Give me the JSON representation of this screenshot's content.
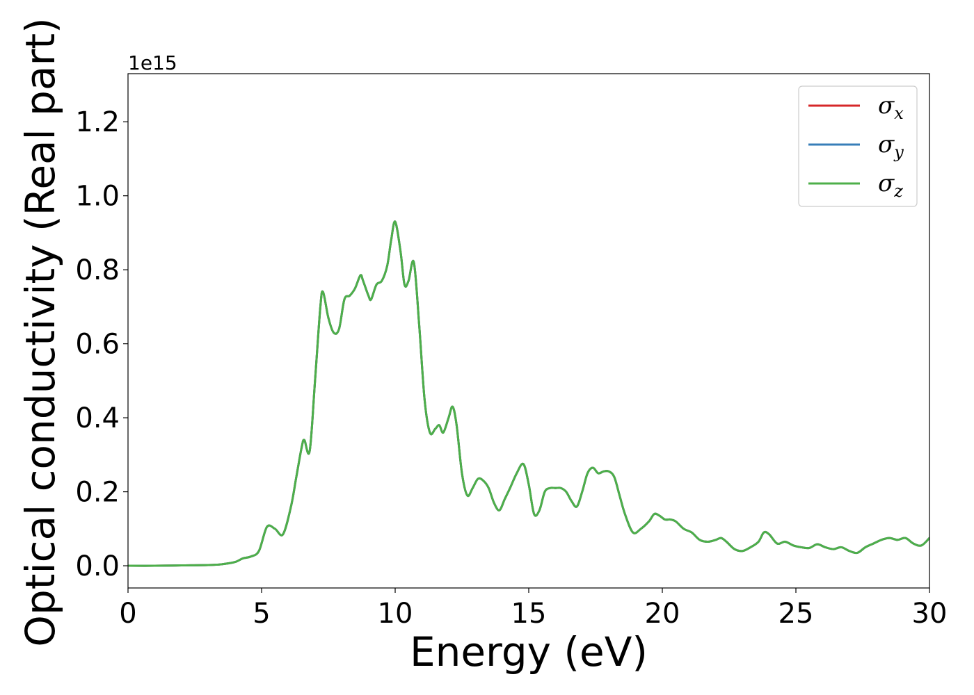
{
  "chart_data": {
    "type": "line",
    "xlabel": "Energy (eV)",
    "ylabel": "Optical conductivity (Real part)",
    "y_offset_label": "1e15",
    "xlim": [
      0,
      30
    ],
    "ylim": [
      -0.06,
      1.33
    ],
    "x_ticks": [
      0,
      5,
      10,
      15,
      20,
      25,
      30
    ],
    "x_tick_labels": [
      "0",
      "5",
      "10",
      "15",
      "20",
      "25",
      "30"
    ],
    "y_ticks": [
      0.0,
      0.2,
      0.4,
      0.6,
      0.8,
      1.0,
      1.2
    ],
    "y_tick_labels": [
      "0.0",
      "0.2",
      "0.4",
      "0.6",
      "0.8",
      "1.0",
      "1.2"
    ],
    "grid": false,
    "legend_position": "top-right",
    "x": [
      0,
      1,
      2,
      3,
      3.5,
      4.0,
      4.3,
      4.6,
      4.9,
      5.2,
      5.5,
      5.8,
      6.1,
      6.3,
      6.5,
      6.6,
      6.8,
      7.0,
      7.2,
      7.3,
      7.5,
      7.7,
      7.9,
      8.1,
      8.3,
      8.5,
      8.7,
      8.8,
      9.0,
      9.1,
      9.3,
      9.5,
      9.7,
      9.85,
      10.0,
      10.2,
      10.35,
      10.5,
      10.7,
      10.9,
      11.1,
      11.3,
      11.5,
      11.65,
      11.8,
      12.0,
      12.15,
      12.3,
      12.5,
      12.7,
      12.9,
      13.1,
      13.3,
      13.5,
      13.7,
      13.9,
      14.1,
      14.3,
      14.55,
      14.8,
      15.0,
      15.2,
      15.4,
      15.6,
      15.8,
      16.0,
      16.2,
      16.4,
      16.6,
      16.8,
      17.0,
      17.2,
      17.4,
      17.6,
      17.8,
      18.0,
      18.2,
      18.4,
      18.6,
      18.9,
      19.2,
      19.5,
      19.7,
      19.9,
      20.1,
      20.3,
      20.5,
      20.8,
      21.1,
      21.4,
      21.7,
      22.0,
      22.2,
      22.4,
      22.7,
      23.0,
      23.3,
      23.6,
      23.8,
      24.0,
      24.3,
      24.6,
      24.9,
      25.2,
      25.5,
      25.8,
      26.1,
      26.4,
      26.7,
      27.0,
      27.3,
      27.6,
      27.9,
      28.2,
      28.5,
      28.8,
      29.1,
      29.4,
      29.7,
      30.0
    ],
    "series": [
      {
        "name": "σx",
        "color": "#d62728",
        "values": [
          0,
          0,
          0.001,
          0.002,
          0.004,
          0.01,
          0.02,
          0.025,
          0.04,
          0.105,
          0.1,
          0.085,
          0.16,
          0.24,
          0.32,
          0.34,
          0.31,
          0.5,
          0.7,
          0.74,
          0.67,
          0.63,
          0.64,
          0.72,
          0.73,
          0.75,
          0.785,
          0.77,
          0.73,
          0.72,
          0.76,
          0.77,
          0.81,
          0.88,
          0.93,
          0.85,
          0.76,
          0.77,
          0.82,
          0.65,
          0.45,
          0.36,
          0.37,
          0.38,
          0.36,
          0.4,
          0.43,
          0.38,
          0.25,
          0.19,
          0.21,
          0.235,
          0.23,
          0.21,
          0.17,
          0.15,
          0.18,
          0.21,
          0.25,
          0.275,
          0.22,
          0.14,
          0.15,
          0.2,
          0.21,
          0.21,
          0.21,
          0.2,
          0.175,
          0.16,
          0.2,
          0.25,
          0.265,
          0.25,
          0.255,
          0.255,
          0.24,
          0.19,
          0.14,
          0.09,
          0.1,
          0.12,
          0.14,
          0.135,
          0.125,
          0.125,
          0.12,
          0.1,
          0.09,
          0.07,
          0.065,
          0.07,
          0.075,
          0.065,
          0.045,
          0.04,
          0.05,
          0.065,
          0.09,
          0.085,
          0.06,
          0.065,
          0.055,
          0.05,
          0.048,
          0.058,
          0.05,
          0.045,
          0.05,
          0.04,
          0.035,
          0.05,
          0.06,
          0.07,
          0.075,
          0.07,
          0.075,
          0.06,
          0.055,
          0.075
        ]
      },
      {
        "name": "σy",
        "color": "#377eb8",
        "values": [
          0,
          0,
          0.001,
          0.002,
          0.004,
          0.01,
          0.02,
          0.025,
          0.04,
          0.105,
          0.1,
          0.085,
          0.16,
          0.24,
          0.32,
          0.34,
          0.31,
          0.5,
          0.7,
          0.74,
          0.67,
          0.63,
          0.64,
          0.72,
          0.73,
          0.75,
          0.785,
          0.77,
          0.73,
          0.72,
          0.76,
          0.77,
          0.81,
          0.88,
          0.93,
          0.85,
          0.76,
          0.77,
          0.82,
          0.65,
          0.45,
          0.36,
          0.37,
          0.38,
          0.36,
          0.4,
          0.43,
          0.38,
          0.25,
          0.19,
          0.21,
          0.235,
          0.23,
          0.21,
          0.17,
          0.15,
          0.18,
          0.21,
          0.25,
          0.275,
          0.22,
          0.14,
          0.15,
          0.2,
          0.21,
          0.21,
          0.21,
          0.2,
          0.175,
          0.16,
          0.2,
          0.25,
          0.265,
          0.25,
          0.255,
          0.255,
          0.24,
          0.19,
          0.14,
          0.09,
          0.1,
          0.12,
          0.14,
          0.135,
          0.125,
          0.125,
          0.12,
          0.1,
          0.09,
          0.07,
          0.065,
          0.07,
          0.075,
          0.065,
          0.045,
          0.04,
          0.05,
          0.065,
          0.09,
          0.085,
          0.06,
          0.065,
          0.055,
          0.05,
          0.048,
          0.058,
          0.05,
          0.045,
          0.05,
          0.04,
          0.035,
          0.05,
          0.06,
          0.07,
          0.075,
          0.07,
          0.075,
          0.06,
          0.055,
          0.075
        ]
      },
      {
        "name": "σz",
        "color": "#4daf4a",
        "values": [
          0,
          0,
          0.001,
          0.002,
          0.004,
          0.01,
          0.02,
          0.025,
          0.04,
          0.105,
          0.1,
          0.085,
          0.16,
          0.24,
          0.32,
          0.34,
          0.31,
          0.5,
          0.7,
          0.74,
          0.67,
          0.63,
          0.64,
          0.72,
          0.73,
          0.75,
          0.785,
          0.77,
          0.73,
          0.72,
          0.76,
          0.77,
          0.81,
          0.88,
          0.93,
          0.85,
          0.76,
          0.77,
          0.82,
          0.65,
          0.45,
          0.36,
          0.37,
          0.38,
          0.36,
          0.4,
          0.43,
          0.38,
          0.25,
          0.19,
          0.21,
          0.235,
          0.23,
          0.21,
          0.17,
          0.15,
          0.18,
          0.21,
          0.25,
          0.275,
          0.22,
          0.14,
          0.15,
          0.2,
          0.21,
          0.21,
          0.21,
          0.2,
          0.175,
          0.16,
          0.2,
          0.25,
          0.265,
          0.25,
          0.255,
          0.255,
          0.24,
          0.19,
          0.14,
          0.09,
          0.1,
          0.12,
          0.14,
          0.135,
          0.125,
          0.125,
          0.12,
          0.1,
          0.09,
          0.07,
          0.065,
          0.07,
          0.075,
          0.065,
          0.045,
          0.04,
          0.05,
          0.065,
          0.09,
          0.085,
          0.06,
          0.065,
          0.055,
          0.05,
          0.048,
          0.058,
          0.05,
          0.045,
          0.05,
          0.04,
          0.035,
          0.05,
          0.06,
          0.07,
          0.075,
          0.07,
          0.075,
          0.06,
          0.055,
          0.075
        ]
      }
    ],
    "legend": [
      {
        "symbol": "σ",
        "sub": "x",
        "color": "#d62728"
      },
      {
        "symbol": "σ",
        "sub": "y",
        "color": "#377eb8"
      },
      {
        "symbol": "σ",
        "sub": "z",
        "color": "#4daf4a"
      }
    ]
  }
}
